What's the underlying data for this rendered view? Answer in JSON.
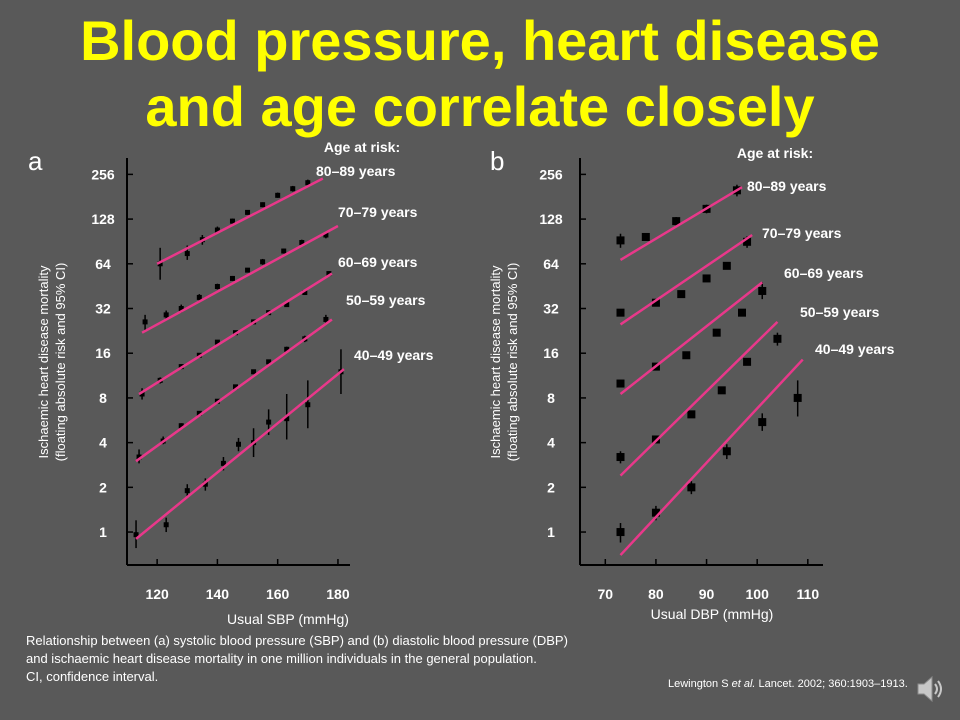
{
  "title": {
    "line1": "Blood pressure, heart disease",
    "line2": "and age correlate closely"
  },
  "caption": {
    "line1": "Relationship between (a) systolic blood pressure (SBP) and (b) diastolic blood pressure (DBP)",
    "line2": "and ischaemic heart disease mortality in one million individuals in the general population.",
    "line3": "CI, confidence interval."
  },
  "citation": {
    "author": "Lewington S ",
    "etal": "et al.",
    "journal": " Lancet.",
    "rest": " 2002; 360:1903–1913."
  },
  "icons": {
    "speaker": "speaker-icon"
  },
  "colors": {
    "background": "#595959",
    "title": "#FFFF00",
    "fit_line": "#E8388A",
    "marker": "#000000",
    "text": "#FFFFFF"
  },
  "chart_data": [
    {
      "panel": "a",
      "type": "scatter",
      "xlabel": "Usual SBP (mmHg)",
      "ylabel_line1": "Ischaemic heart disease mortality",
      "ylabel_line2": "(floating absolute risk and 95% CI)",
      "legend_title": "Age at risk:",
      "xlim": [
        110,
        184
      ],
      "xticks": [
        120,
        140,
        160,
        180
      ],
      "ylim": [
        0.6,
        330
      ],
      "yscale": "log",
      "yticks": [
        1,
        2,
        4,
        8,
        16,
        32,
        64,
        128,
        256
      ],
      "series": [
        {
          "name": "80–89 years",
          "fit": [
            [
              120,
              64
            ],
            [
              175,
              240
            ]
          ],
          "points": [
            {
              "x": 121,
              "y": 64,
              "lo": 50,
              "hi": 82
            },
            {
              "x": 130,
              "y": 75,
              "lo": 68,
              "hi": 85
            },
            {
              "x": 135,
              "y": 93,
              "lo": 86,
              "hi": 100
            },
            {
              "x": 140,
              "y": 108,
              "lo": 103,
              "hi": 114
            },
            {
              "x": 145,
              "y": 124,
              "lo": 119,
              "hi": 129
            },
            {
              "x": 150,
              "y": 142,
              "lo": 137,
              "hi": 147
            },
            {
              "x": 155,
              "y": 160,
              "lo": 154,
              "hi": 166
            },
            {
              "x": 160,
              "y": 185,
              "lo": 178,
              "hi": 193
            },
            {
              "x": 165,
              "y": 205,
              "lo": 196,
              "hi": 214
            },
            {
              "x": 170,
              "y": 225,
              "lo": 214,
              "hi": 236
            }
          ]
        },
        {
          "name": "70–79 years",
          "fit": [
            [
              115,
              22
            ],
            [
              180,
              115
            ]
          ],
          "points": [
            {
              "x": 116,
              "y": 26,
              "lo": 23,
              "hi": 29
            },
            {
              "x": 123,
              "y": 29,
              "lo": 27,
              "hi": 31
            },
            {
              "x": 128,
              "y": 32,
              "lo": 30,
              "hi": 34
            },
            {
              "x": 134,
              "y": 38,
              "lo": 36,
              "hi": 40
            },
            {
              "x": 140,
              "y": 45,
              "lo": 43,
              "hi": 47
            },
            {
              "x": 145,
              "y": 51,
              "lo": 49,
              "hi": 53
            },
            {
              "x": 150,
              "y": 58,
              "lo": 56,
              "hi": 60
            },
            {
              "x": 155,
              "y": 66,
              "lo": 63,
              "hi": 69
            },
            {
              "x": 162,
              "y": 78,
              "lo": 75,
              "hi": 81
            },
            {
              "x": 168,
              "y": 89,
              "lo": 85,
              "hi": 93
            },
            {
              "x": 176,
              "y": 100,
              "lo": 95,
              "hi": 105
            }
          ]
        },
        {
          "name": "60–69 years",
          "fit": [
            [
              114,
              8.5
            ],
            [
              178,
              55
            ]
          ],
          "points": [
            {
              "x": 115,
              "y": 8.5,
              "lo": 7.8,
              "hi": 9.3
            },
            {
              "x": 121,
              "y": 10.5,
              "lo": 10,
              "hi": 11
            },
            {
              "x": 128,
              "y": 13,
              "lo": 12.5,
              "hi": 13.5
            },
            {
              "x": 134,
              "y": 15.5,
              "lo": 15,
              "hi": 16
            },
            {
              "x": 140,
              "y": 19,
              "lo": 18.5,
              "hi": 19.5
            },
            {
              "x": 146,
              "y": 22,
              "lo": 21.5,
              "hi": 22.5
            },
            {
              "x": 152,
              "y": 26,
              "lo": 25.3,
              "hi": 26.7
            },
            {
              "x": 157,
              "y": 30,
              "lo": 29,
              "hi": 31
            },
            {
              "x": 163,
              "y": 34,
              "lo": 33,
              "hi": 35
            },
            {
              "x": 169,
              "y": 41,
              "lo": 39.5,
              "hi": 42.5
            },
            {
              "x": 177,
              "y": 55,
              "lo": 53,
              "hi": 57
            }
          ]
        },
        {
          "name": "50–59 years",
          "fit": [
            [
              113,
              3.0
            ],
            [
              178,
              27
            ]
          ],
          "points": [
            {
              "x": 114,
              "y": 3.2,
              "lo": 2.9,
              "hi": 3.6
            },
            {
              "x": 122,
              "y": 4.1,
              "lo": 3.9,
              "hi": 4.4
            },
            {
              "x": 128,
              "y": 5.2,
              "lo": 5.0,
              "hi": 5.4
            },
            {
              "x": 134,
              "y": 6.3,
              "lo": 6.1,
              "hi": 6.5
            },
            {
              "x": 140,
              "y": 7.6,
              "lo": 7.4,
              "hi": 7.8
            },
            {
              "x": 146,
              "y": 9.5,
              "lo": 9.2,
              "hi": 9.8
            },
            {
              "x": 152,
              "y": 12,
              "lo": 11.6,
              "hi": 12.4
            },
            {
              "x": 157,
              "y": 14,
              "lo": 13.5,
              "hi": 14.5
            },
            {
              "x": 163,
              "y": 17,
              "lo": 16.3,
              "hi": 17.7
            },
            {
              "x": 169,
              "y": 20,
              "lo": 19,
              "hi": 21
            },
            {
              "x": 176,
              "y": 27,
              "lo": 25,
              "hi": 29
            }
          ]
        },
        {
          "name": "40–49 years",
          "fit": [
            [
              113,
              0.9
            ],
            [
              182,
              12.5
            ]
          ],
          "points": [
            {
              "x": 113,
              "y": 0.96,
              "lo": 0.78,
              "hi": 1.2
            },
            {
              "x": 123,
              "y": 1.12,
              "lo": 1.0,
              "hi": 1.25
            },
            {
              "x": 130,
              "y": 1.9,
              "lo": 1.7,
              "hi": 2.1
            },
            {
              "x": 136,
              "y": 2.1,
              "lo": 1.9,
              "hi": 2.3
            },
            {
              "x": 142,
              "y": 2.9,
              "lo": 2.6,
              "hi": 3.2
            },
            {
              "x": 147,
              "y": 3.9,
              "lo": 3.5,
              "hi": 4.3
            },
            {
              "x": 152,
              "y": 4.0,
              "lo": 3.2,
              "hi": 5.0
            },
            {
              "x": 157,
              "y": 5.5,
              "lo": 4.5,
              "hi": 6.7
            },
            {
              "x": 163,
              "y": 5.8,
              "lo": 4.2,
              "hi": 8.5
            },
            {
              "x": 170,
              "y": 7.2,
              "lo": 5.0,
              "hi": 10.5
            },
            {
              "x": 181,
              "y": 12,
              "lo": 8.5,
              "hi": 17
            }
          ]
        }
      ]
    },
    {
      "panel": "b",
      "type": "scatter",
      "xlabel": "Usual DBP (mmHg)",
      "ylabel_line1": "Ischaemic heart disease mortality",
      "ylabel_line2": "(floating absolute risk and 95% CI)",
      "legend_title": "Age at risk:",
      "xlim": [
        65,
        113
      ],
      "xticks": [
        70,
        80,
        90,
        100,
        110
      ],
      "ylim": [
        0.6,
        330
      ],
      "yscale": "log",
      "yticks": [
        1,
        2,
        4,
        8,
        16,
        32,
        64,
        128,
        256
      ],
      "series": [
        {
          "name": "80–89 years",
          "fit": [
            [
              73,
              68
            ],
            [
              97,
              210
            ]
          ],
          "points": [
            {
              "x": 73,
              "y": 92,
              "lo": 82,
              "hi": 102
            },
            {
              "x": 78,
              "y": 97,
              "lo": 92,
              "hi": 103
            },
            {
              "x": 84,
              "y": 124,
              "lo": 116,
              "hi": 132
            },
            {
              "x": 90,
              "y": 150,
              "lo": 140,
              "hi": 160
            },
            {
              "x": 96,
              "y": 200,
              "lo": 182,
              "hi": 218
            }
          ]
        },
        {
          "name": "70–79 years",
          "fit": [
            [
              73,
              25
            ],
            [
              99,
              100
            ]
          ],
          "points": [
            {
              "x": 73,
              "y": 30,
              "lo": 29,
              "hi": 31
            },
            {
              "x": 80,
              "y": 35,
              "lo": 34,
              "hi": 36
            },
            {
              "x": 85,
              "y": 40,
              "lo": 39,
              "hi": 41
            },
            {
              "x": 90,
              "y": 51,
              "lo": 49.5,
              "hi": 52.5
            },
            {
              "x": 94,
              "y": 62,
              "lo": 60,
              "hi": 64
            },
            {
              "x": 98,
              "y": 90,
              "lo": 82,
              "hi": 98
            }
          ]
        },
        {
          "name": "60–69 years",
          "fit": [
            [
              73,
              8.5
            ],
            [
              101,
              48
            ]
          ],
          "points": [
            {
              "x": 73,
              "y": 10,
              "lo": 9.5,
              "hi": 10.5
            },
            {
              "x": 80,
              "y": 13,
              "lo": 12.5,
              "hi": 13.5
            },
            {
              "x": 86,
              "y": 15.5,
              "lo": 15,
              "hi": 16
            },
            {
              "x": 92,
              "y": 22,
              "lo": 21.3,
              "hi": 22.7
            },
            {
              "x": 97,
              "y": 30,
              "lo": 28.5,
              "hi": 31.5
            },
            {
              "x": 101,
              "y": 42,
              "lo": 37,
              "hi": 48
            }
          ]
        },
        {
          "name": "50–59 years",
          "fit": [
            [
              73,
              2.4
            ],
            [
              104,
              26
            ]
          ],
          "points": [
            {
              "x": 73,
              "y": 3.2,
              "lo": 2.9,
              "hi": 3.5
            },
            {
              "x": 80,
              "y": 4.2,
              "lo": 4.0,
              "hi": 4.4
            },
            {
              "x": 87,
              "y": 6.2,
              "lo": 5.9,
              "hi": 6.5
            },
            {
              "x": 93,
              "y": 9.0,
              "lo": 8.6,
              "hi": 9.4
            },
            {
              "x": 98,
              "y": 14,
              "lo": 13.3,
              "hi": 14.7
            },
            {
              "x": 104,
              "y": 20,
              "lo": 18,
              "hi": 22
            }
          ]
        },
        {
          "name": "40–49 years",
          "fit": [
            [
              73,
              0.7
            ],
            [
              109,
              14.5
            ]
          ],
          "points": [
            {
              "x": 73,
              "y": 1.0,
              "lo": 0.85,
              "hi": 1.15
            },
            {
              "x": 80,
              "y": 1.35,
              "lo": 1.2,
              "hi": 1.5
            },
            {
              "x": 87,
              "y": 2.0,
              "lo": 1.8,
              "hi": 2.2
            },
            {
              "x": 94,
              "y": 3.5,
              "lo": 3.1,
              "hi": 3.9
            },
            {
              "x": 101,
              "y": 5.5,
              "lo": 4.8,
              "hi": 6.3
            },
            {
              "x": 108,
              "y": 8.0,
              "lo": 6.0,
              "hi": 10.5
            }
          ]
        }
      ]
    }
  ]
}
